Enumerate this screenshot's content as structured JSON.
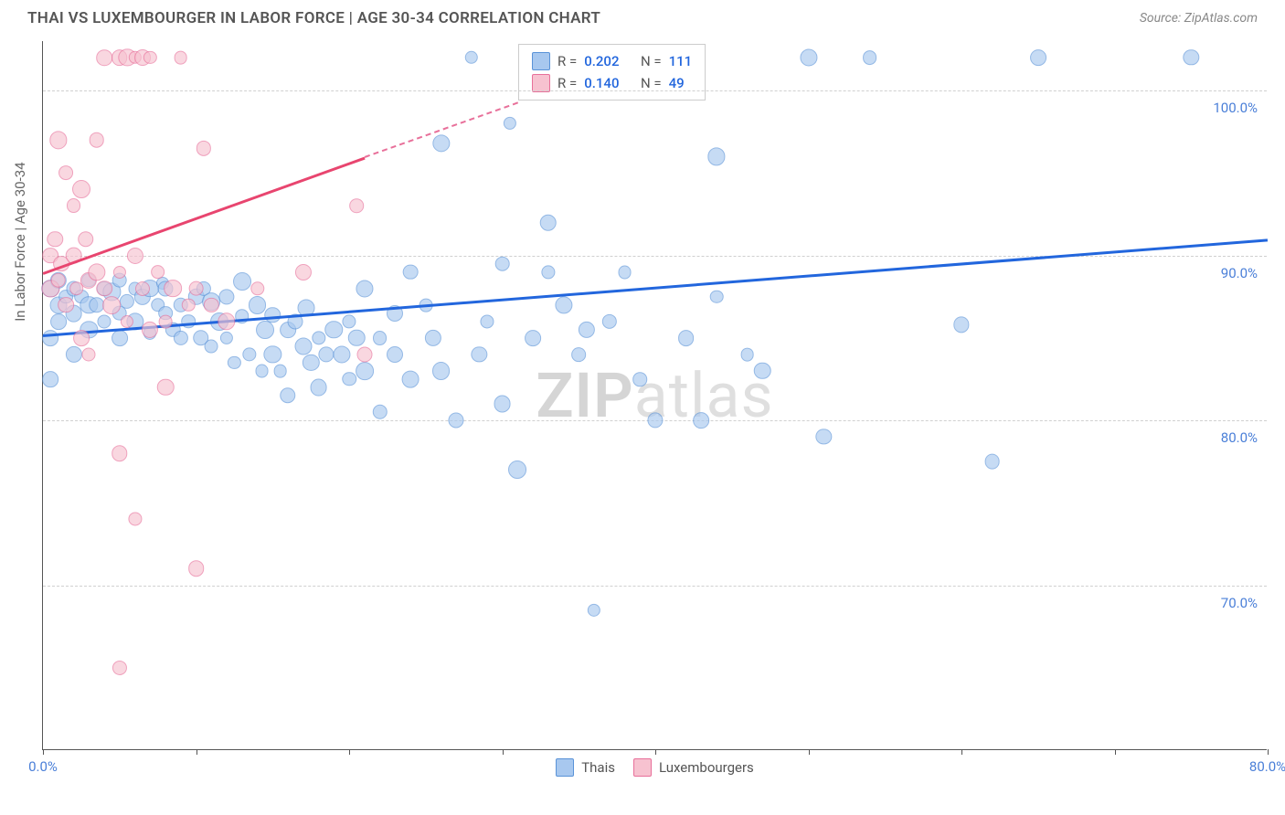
{
  "header": {
    "title": "THAI VS LUXEMBOURGER IN LABOR FORCE | AGE 30-34 CORRELATION CHART",
    "source": "Source: ZipAtlas.com"
  },
  "chart": {
    "type": "scatter",
    "ylabel": "In Labor Force | Age 30-34",
    "watermark": "ZIPatlas",
    "xlim": [
      0,
      80
    ],
    "ylim": [
      60,
      103
    ],
    "background_color": "#ffffff",
    "grid_color": "#d0d0d0",
    "axis_color": "#555555",
    "yticks": [
      {
        "v": 70,
        "label": "70.0%"
      },
      {
        "v": 80,
        "label": "80.0%"
      },
      {
        "v": 90,
        "label": "90.0%"
      },
      {
        "v": 100,
        "label": "100.0%"
      }
    ],
    "xticks": [
      0,
      10,
      20,
      30,
      40,
      50,
      60,
      70,
      80
    ],
    "xtick_labels": {
      "0": "0.0%",
      "80": "80.0%"
    },
    "series": [
      {
        "name": "Thais",
        "label": "Thais",
        "marker_fill": "#a8c8ef",
        "marker_stroke": "#5a93d8",
        "marker_opacity": 0.65,
        "marker_size": 16,
        "R": "0.202",
        "N": "111",
        "trend": {
          "x1": 0,
          "y1": 85.2,
          "x2": 80,
          "y2": 91.0,
          "color": "#2266dd"
        },
        "points": [
          [
            0.5,
            88
          ],
          [
            0.5,
            85
          ],
          [
            0.5,
            82.5
          ],
          [
            1,
            87
          ],
          [
            1,
            88.5
          ],
          [
            1,
            86
          ],
          [
            1.5,
            87.5
          ],
          [
            2,
            88
          ],
          [
            2,
            86.5
          ],
          [
            2,
            84
          ],
          [
            2.5,
            87.5
          ],
          [
            3,
            87
          ],
          [
            3,
            85.5
          ],
          [
            3,
            88.5
          ],
          [
            3.5,
            87
          ],
          [
            4,
            86
          ],
          [
            4,
            88
          ],
          [
            4.5,
            87.8
          ],
          [
            5,
            85
          ],
          [
            5,
            88.5
          ],
          [
            5,
            86.5
          ],
          [
            5.5,
            87.2
          ],
          [
            6,
            86
          ],
          [
            6,
            88
          ],
          [
            6.5,
            87.5
          ],
          [
            7,
            88
          ],
          [
            7,
            85.3
          ],
          [
            7.5,
            87
          ],
          [
            7.8,
            88.3
          ],
          [
            8,
            86.5
          ],
          [
            8,
            88
          ],
          [
            8.5,
            85.5
          ],
          [
            9,
            87
          ],
          [
            9,
            85
          ],
          [
            9.5,
            86
          ],
          [
            10,
            87.5
          ],
          [
            10.3,
            85
          ],
          [
            10.5,
            88
          ],
          [
            11,
            87.2
          ],
          [
            11,
            84.5
          ],
          [
            11.5,
            86
          ],
          [
            12,
            85
          ],
          [
            12,
            87.5
          ],
          [
            12.5,
            83.5
          ],
          [
            13,
            86.3
          ],
          [
            13,
            88.4
          ],
          [
            13.5,
            84
          ],
          [
            14,
            87
          ],
          [
            14.3,
            83
          ],
          [
            14.5,
            85.5
          ],
          [
            15,
            86.4
          ],
          [
            15,
            84
          ],
          [
            15.5,
            83
          ],
          [
            16,
            85.5
          ],
          [
            16,
            81.5
          ],
          [
            16.5,
            86
          ],
          [
            17,
            84.5
          ],
          [
            17.2,
            86.8
          ],
          [
            17.5,
            83.5
          ],
          [
            18,
            85
          ],
          [
            18,
            82
          ],
          [
            18.5,
            84
          ],
          [
            19,
            85.5
          ],
          [
            19.5,
            84
          ],
          [
            20,
            82.5
          ],
          [
            20,
            86
          ],
          [
            20.5,
            85
          ],
          [
            21,
            83
          ],
          [
            21,
            88
          ],
          [
            22,
            85
          ],
          [
            22,
            80.5
          ],
          [
            23,
            86.5
          ],
          [
            23,
            84
          ],
          [
            24,
            89
          ],
          [
            24,
            82.5
          ],
          [
            25,
            87
          ],
          [
            25.5,
            85
          ],
          [
            26,
            96.8
          ],
          [
            26,
            83
          ],
          [
            27,
            80
          ],
          [
            28,
            102
          ],
          [
            28.5,
            84
          ],
          [
            29,
            86
          ],
          [
            30,
            89.5
          ],
          [
            30,
            81
          ],
          [
            30.5,
            98
          ],
          [
            31,
            77
          ],
          [
            32,
            85
          ],
          [
            33,
            89
          ],
          [
            33,
            92
          ],
          [
            34,
            87
          ],
          [
            35,
            84
          ],
          [
            35.5,
            85.5
          ],
          [
            36,
            68.5
          ],
          [
            37,
            86
          ],
          [
            38,
            89
          ],
          [
            39,
            82.5
          ],
          [
            40,
            80
          ],
          [
            42,
            85
          ],
          [
            43,
            80
          ],
          [
            44,
            96
          ],
          [
            44,
            87.5
          ],
          [
            46,
            84
          ],
          [
            47,
            83
          ],
          [
            50,
            102
          ],
          [
            51,
            79
          ],
          [
            54,
            102
          ],
          [
            60,
            85.8
          ],
          [
            62,
            77.5
          ],
          [
            65,
            102
          ],
          [
            75,
            102
          ]
        ]
      },
      {
        "name": "Luxembourgers",
        "label": "Luxembourgers",
        "marker_fill": "#f7c2d0",
        "marker_stroke": "#e8709a",
        "marker_opacity": 0.65,
        "marker_size": 16,
        "R": "0.140",
        "N": "49",
        "trend_solid": {
          "x1": 0,
          "y1": 89,
          "x2": 21,
          "y2": 96,
          "color": "#e8456f"
        },
        "trend_dash": {
          "x1": 21,
          "y1": 96,
          "x2": 31,
          "y2": 99.3,
          "color": "#e8709a"
        },
        "points": [
          [
            0.5,
            90
          ],
          [
            0.5,
            88
          ],
          [
            0.8,
            91
          ],
          [
            1,
            88.5
          ],
          [
            1,
            97
          ],
          [
            1.2,
            89.5
          ],
          [
            1.5,
            95
          ],
          [
            1.5,
            87
          ],
          [
            2,
            90
          ],
          [
            2,
            93
          ],
          [
            2.2,
            88
          ],
          [
            2.5,
            94
          ],
          [
            2.5,
            85
          ],
          [
            2.8,
            91
          ],
          [
            3,
            88.5
          ],
          [
            3,
            84
          ],
          [
            3.5,
            89
          ],
          [
            3.5,
            97
          ],
          [
            4,
            88
          ],
          [
            4,
            102
          ],
          [
            4.5,
            87
          ],
          [
            5,
            89
          ],
          [
            5,
            102
          ],
          [
            5,
            78
          ],
          [
            5.5,
            86
          ],
          [
            5.5,
            102
          ],
          [
            6,
            90
          ],
          [
            6,
            102
          ],
          [
            6.5,
            88
          ],
          [
            6.5,
            102
          ],
          [
            7,
            85.5
          ],
          [
            7,
            102
          ],
          [
            7.5,
            89
          ],
          [
            8,
            86
          ],
          [
            8,
            82
          ],
          [
            8.5,
            88
          ],
          [
            9,
            102
          ],
          [
            9.5,
            87
          ],
          [
            10,
            88
          ],
          [
            10,
            71
          ],
          [
            10.5,
            96.5
          ],
          [
            11,
            87
          ],
          [
            5,
            65
          ],
          [
            12,
            86
          ],
          [
            14,
            88
          ],
          [
            6,
            74
          ],
          [
            17,
            89
          ],
          [
            20.5,
            93
          ],
          [
            21,
            84
          ]
        ]
      }
    ],
    "legend_box": {
      "r_label": "R =",
      "n_label": "N ="
    },
    "legend_bottom": [
      {
        "label": "Thais",
        "fill": "#a8c8ef",
        "stroke": "#5a93d8"
      },
      {
        "label": "Luxembourgers",
        "fill": "#f7c2d0",
        "stroke": "#e8709a"
      }
    ]
  }
}
